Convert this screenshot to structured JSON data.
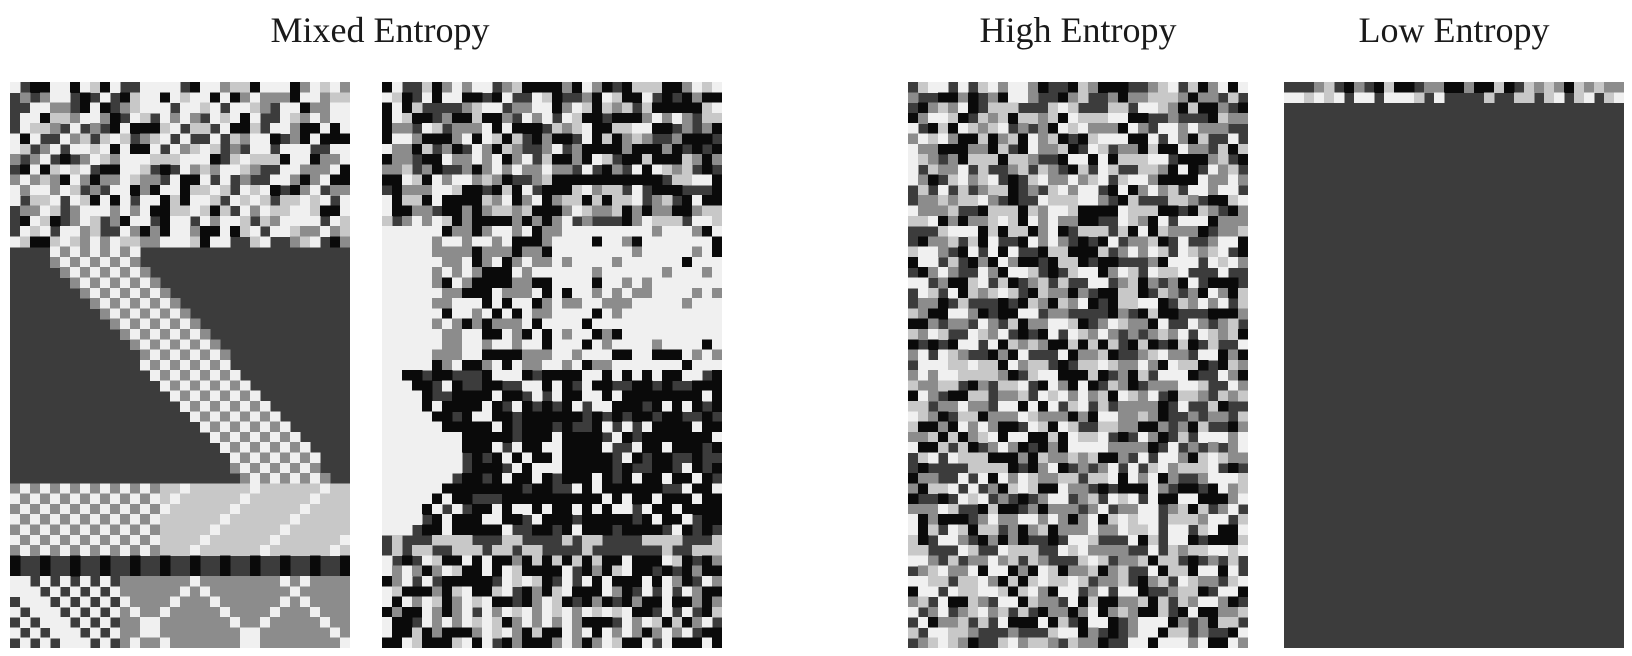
{
  "headings": {
    "mixed": "Mixed Entropy",
    "high": "High Entropy",
    "low": "Low Entropy"
  },
  "palette": [
    "#0a0a0a",
    "#3c3c3c",
    "#8c8c8c",
    "#c8c8c8",
    "#f0f0f0"
  ],
  "panels": [
    {
      "group": "mixed",
      "pattern": "mixed-a"
    },
    {
      "group": "mixed",
      "pattern": "mixed-b"
    },
    {
      "group": "high",
      "pattern": "random"
    },
    {
      "group": "low",
      "pattern": "uniform"
    }
  ]
}
